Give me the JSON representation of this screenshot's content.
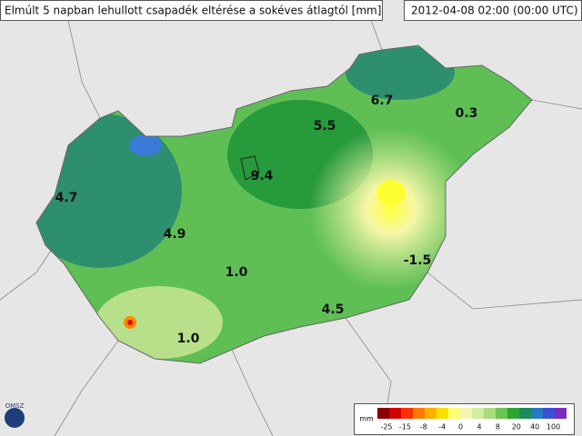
{
  "header": {
    "title": "Elmúlt 5 napban lehullott csapadék eltérése a sokéves átlagtól [mm]",
    "timestamp": "2012-04-08 02:00 (00:00 UTC)"
  },
  "labels": [
    "4.7",
    "4.9",
    "1.0",
    "1.0",
    "9.4",
    "5.5",
    "6.7",
    "0.3",
    "-1.5",
    "4.5"
  ],
  "logo": "OMSZ",
  "legend": {
    "unit": "mm",
    "ticks": [
      "-25",
      "-15",
      "-8",
      "-4",
      "0",
      "4",
      "8",
      "20",
      "40",
      "100"
    ],
    "colors": [
      "#8b0000",
      "#d40000",
      "#ff3000",
      "#ff7a00",
      "#ffb000",
      "#ffe000",
      "#ffff70",
      "#f4f7b0",
      "#d2eca0",
      "#a8db7a",
      "#6cc450",
      "#2ea632",
      "#1c8c5a",
      "#2a78c8",
      "#3a4ed8",
      "#7a2cc0"
    ]
  }
}
